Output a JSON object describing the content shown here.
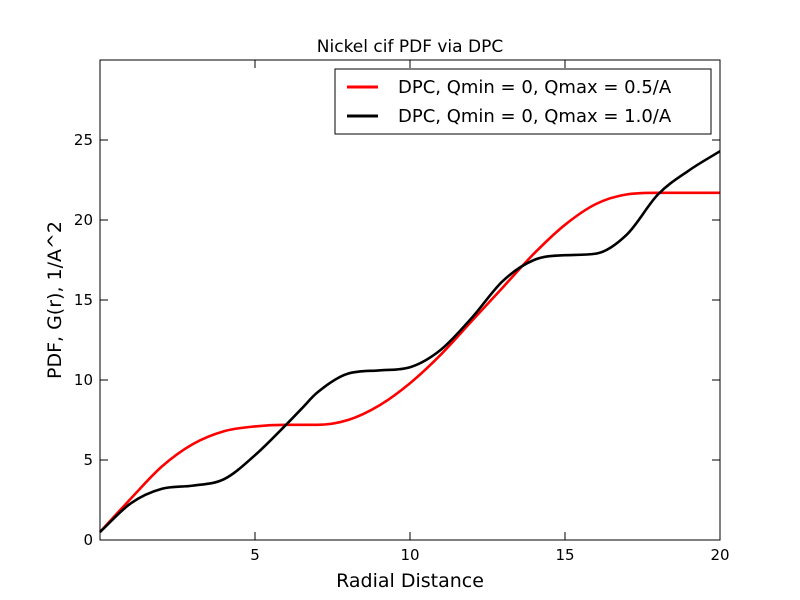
{
  "chart_data": {
    "type": "line",
    "title": "Nickel cif PDF via DPC",
    "xlabel": "Radial Distance",
    "ylabel": "PDF, G(r), 1/A^2",
    "xlim": [
      0,
      20
    ],
    "ylim": [
      0,
      30
    ],
    "xticks": [
      "5",
      "10",
      "15",
      "20"
    ],
    "yticks": [
      "0",
      "5",
      "10",
      "15",
      "20",
      "25"
    ],
    "grid": false,
    "legend_position": "top-right",
    "series": [
      {
        "name": "DPC, Qmin = 0, Qmax = 0.5/A",
        "color": "#ff0000",
        "x": [
          0,
          1,
          2,
          3,
          4,
          5,
          6,
          7,
          8,
          9,
          10,
          11,
          12,
          13,
          14,
          15,
          16,
          17,
          18,
          19,
          20
        ],
        "y": [
          0.5,
          2.6,
          4.6,
          6.0,
          6.8,
          7.1,
          7.2,
          7.2,
          7.5,
          8.4,
          9.8,
          11.6,
          13.7,
          15.8,
          17.9,
          19.7,
          21.0,
          21.6,
          21.7,
          21.7,
          21.7
        ]
      },
      {
        "name": "DPC, Qmin = 0, Qmax = 1.0/A",
        "color": "#000000",
        "x": [
          0,
          1,
          2,
          3,
          4,
          5,
          6,
          6.5,
          7,
          8,
          9,
          10,
          11,
          12,
          13,
          14,
          15,
          16,
          17,
          18,
          19,
          20
        ],
        "y": [
          0.5,
          2.3,
          3.2,
          3.4,
          3.8,
          5.3,
          7.2,
          8.2,
          9.2,
          10.4,
          10.6,
          10.8,
          11.9,
          13.9,
          16.2,
          17.5,
          17.8,
          17.9,
          19.1,
          21.6,
          23.1,
          24.3
        ]
      }
    ]
  }
}
